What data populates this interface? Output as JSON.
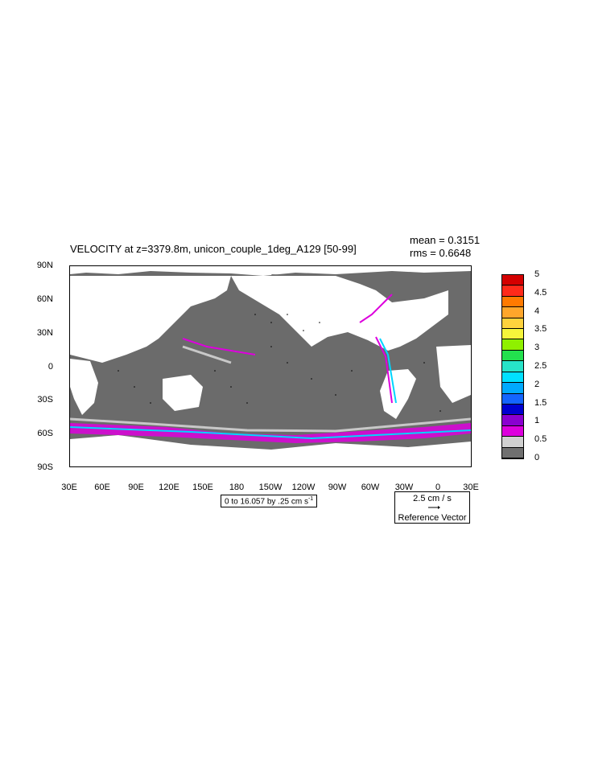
{
  "title": "VELOCITY at z=3379.8m, unicon_couple_1deg_A129 [50-99]",
  "stats": {
    "mean": "mean = 0.3151",
    "rms": "rms = 0.6648"
  },
  "y_labels": [
    "90N",
    "60N",
    "30N",
    "0",
    "30S",
    "60S",
    "90S"
  ],
  "x_labels": [
    "30E",
    "60E",
    "90E",
    "120E",
    "150E",
    "180",
    "150W",
    "120W",
    "90W",
    "60W",
    "30W",
    "0",
    "30E"
  ],
  "contour_info_main": "0 to 16.057 by .25 cm s",
  "contour_info_sup": "-1",
  "reference": {
    "magnitude": "2.5 cm / s",
    "label": "Reference Vector"
  },
  "legend": {
    "labels": [
      "5",
      "4.5",
      "4",
      "3.5",
      "3",
      "2.5",
      "2",
      "1.5",
      "1",
      "0.5",
      "0"
    ],
    "colors": [
      "#d40000",
      "#ff2a1a",
      "#ff7a00",
      "#ffa62b",
      "#ffd23d",
      "#f5f53b",
      "#8ff000",
      "#23e04e",
      "#27e3c8",
      "#00e0ff",
      "#00a9ff",
      "#1465ff",
      "#0000d0",
      "#8a00d0",
      "#dd00dd",
      "#d0d0d0",
      "#707070"
    ]
  },
  "colors": {
    "land": "#ffffff",
    "ocean_low": "#6b6b6b",
    "ocean_med": "#c8c8c8",
    "magenta": "#dd00dd",
    "cyan": "#00d5ff"
  }
}
